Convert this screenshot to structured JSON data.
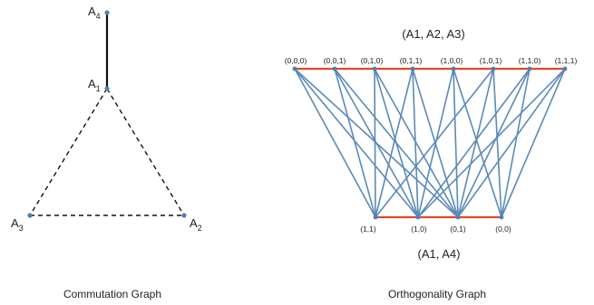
{
  "commutation_graph": {
    "caption": "Commutation Graph",
    "nodes": [
      {
        "id": "A4",
        "base": "A",
        "sub": "4"
      },
      {
        "id": "A1",
        "base": "A",
        "sub": "1"
      },
      {
        "id": "A3",
        "base": "A",
        "sub": "3"
      },
      {
        "id": "A2",
        "base": "A",
        "sub": "2"
      }
    ],
    "solid_edges": [
      [
        "A4",
        "A1"
      ]
    ],
    "dashed_edges": [
      [
        "A1",
        "A2"
      ],
      [
        "A1",
        "A3"
      ],
      [
        "A3",
        "A2"
      ]
    ]
  },
  "orthogonality_graph": {
    "caption": "Orthogonality Graph",
    "top_label": "(A1, A2, A3)",
    "bottom_label": "(A1, A4)",
    "top_nodes": [
      "(0,0,0)",
      "(0,0,1)",
      "(0,1,0)",
      "(0,1,1)",
      "(1,0,0)",
      "(1,0,1)",
      "(1,1,0)",
      "(1,1,1)"
    ],
    "bottom_nodes": [
      "(1,1)",
      "(1,0)",
      "(0,1)",
      "(0,0)"
    ],
    "edges": [
      [
        0,
        0
      ],
      [
        0,
        1
      ],
      [
        0,
        2
      ],
      [
        1,
        0
      ],
      [
        1,
        1
      ],
      [
        1,
        2
      ],
      [
        2,
        0
      ],
      [
        2,
        1
      ],
      [
        2,
        2
      ],
      [
        3,
        0
      ],
      [
        3,
        1
      ],
      [
        3,
        2
      ],
      [
        4,
        1
      ],
      [
        4,
        2
      ],
      [
        4,
        3
      ],
      [
        5,
        0
      ],
      [
        5,
        2
      ],
      [
        5,
        3
      ],
      [
        6,
        1
      ],
      [
        6,
        2
      ],
      [
        6,
        3
      ],
      [
        7,
        1
      ],
      [
        7,
        2
      ],
      [
        7,
        3
      ]
    ],
    "edge_color": "#5b8ab8",
    "row_color": "#e04a2a",
    "node_color": "#4f7fae"
  }
}
